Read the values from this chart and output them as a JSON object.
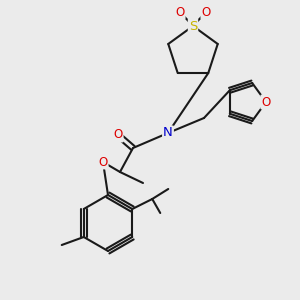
{
  "background_color": "#ebebeb",
  "bond_color": "#1a1a1a",
  "atom_colors": {
    "S": "#c8b400",
    "O": "#dd0000",
    "N": "#0000cc",
    "C": "#1a1a1a"
  },
  "figsize": [
    3.0,
    3.0
  ],
  "dpi": 100
}
